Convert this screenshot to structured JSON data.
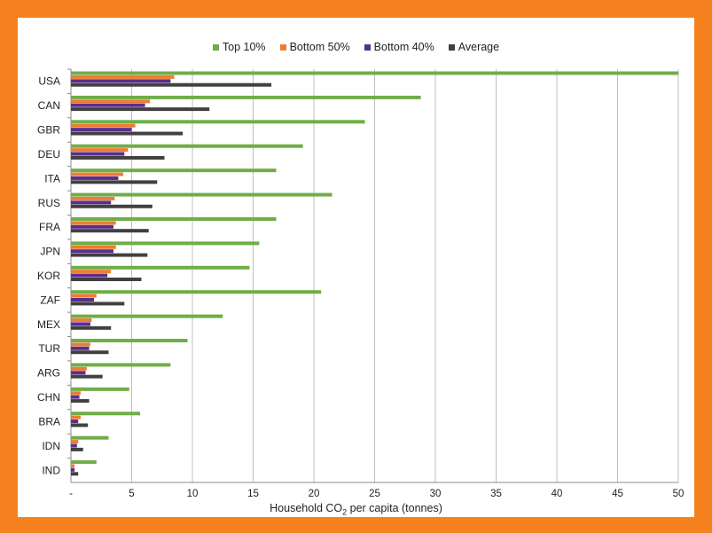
{
  "chart_data": {
    "type": "bar",
    "orientation": "horizontal",
    "categories": [
      "USA",
      "CAN",
      "GBR",
      "DEU",
      "ITA",
      "RUS",
      "FRA",
      "JPN",
      "KOR",
      "ZAF",
      "MEX",
      "TUR",
      "ARG",
      "CHN",
      "BRA",
      "IDN",
      "IND"
    ],
    "series": [
      {
        "name": "Top 10%",
        "color": "#70ad47",
        "values": [
          50,
          28.8,
          24.2,
          19.1,
          16.9,
          21.5,
          16.9,
          15.5,
          14.7,
          20.6,
          12.5,
          9.6,
          8.2,
          4.8,
          5.7,
          3.1,
          2.1
        ]
      },
      {
        "name": "Bottom 50%",
        "color": "#ed7d31",
        "values": [
          8.5,
          6.5,
          5.3,
          4.7,
          4.3,
          3.6,
          3.7,
          3.7,
          3.3,
          2.1,
          1.7,
          1.6,
          1.3,
          0.8,
          0.8,
          0.6,
          0.3
        ]
      },
      {
        "name": "Bottom 40%",
        "color": "#5b2d8e",
        "values": [
          8.2,
          6.1,
          5.0,
          4.4,
          3.9,
          3.3,
          3.5,
          3.5,
          3.0,
          1.9,
          1.6,
          1.5,
          1.2,
          0.7,
          0.6,
          0.5,
          0.3
        ]
      },
      {
        "name": "Average",
        "color": "#404040",
        "values": [
          16.5,
          11.4,
          9.2,
          7.7,
          7.1,
          6.7,
          6.4,
          6.3,
          5.8,
          4.4,
          3.3,
          3.1,
          2.6,
          1.5,
          1.4,
          1.0,
          0.6
        ]
      }
    ],
    "x_ticks": [
      "-",
      "5",
      "10",
      "15",
      "20",
      "25",
      "30",
      "35",
      "40",
      "45",
      "50"
    ],
    "xlim": [
      0,
      50
    ],
    "xlabel_main": "Household CO",
    "xlabel_sub": "2",
    "xlabel_tail": " per capita (tonnes)",
    "legend_position": "top",
    "grid": "vertical",
    "frame_color": "#f5821f"
  }
}
